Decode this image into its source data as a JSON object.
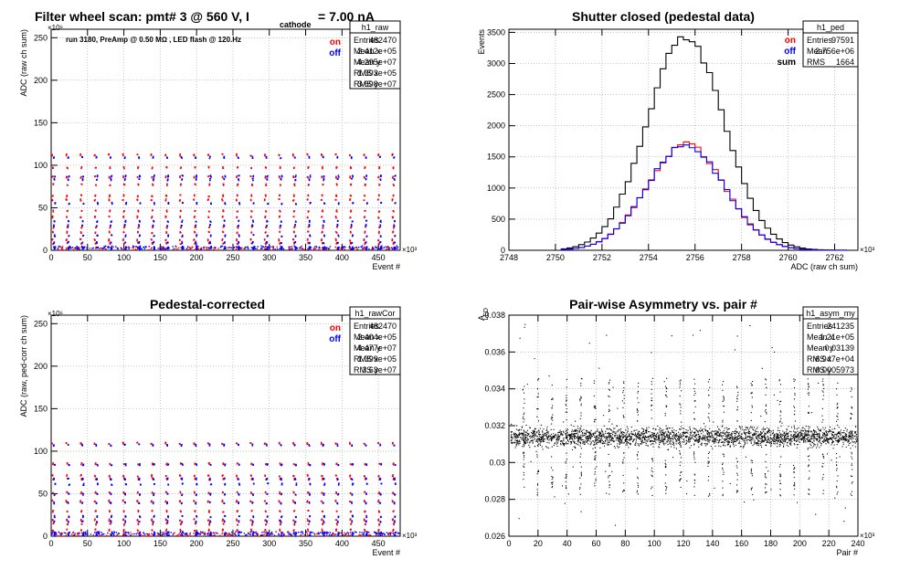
{
  "colors": {
    "on": "#ff0000",
    "off": "#0000ff",
    "sum": "#000000",
    "frame": "#000000",
    "grid": "#a0a0a0"
  },
  "chart_data": [
    {
      "id": "raw",
      "type": "scatter",
      "title": "Filter wheel scan: pmt#   3 @   560 V, I",
      "title_sub": "cathode",
      "title_end": "= 7.00 nA",
      "annotation": "run 3180, PreAmp @ 0.50 MΩ , LED flash @  120.Hz",
      "xlabel": "Event #",
      "ylabel": "ADC (raw ch sum)",
      "x_exponent": "×10³",
      "y_exponent": "×10⁶",
      "xlim": [
        0,
        480
      ],
      "ylim": [
        0,
        260
      ],
      "xticks": [
        0,
        50,
        100,
        150,
        200,
        250,
        300,
        350,
        400,
        450
      ],
      "yticks": [
        0,
        50,
        100,
        150,
        200,
        250
      ],
      "grid": true,
      "legend": [
        {
          "name": "on",
          "color": "red"
        },
        {
          "name": "off",
          "color": "blue"
        }
      ],
      "stats": {
        "name": "h1_raw",
        "rows": [
          [
            "Entries",
            "482470"
          ],
          [
            "Mean x",
            "2.412e+05"
          ],
          [
            "Mean y",
            "4.295e+07"
          ],
          [
            "RMS x",
            "1.393e+05"
          ],
          [
            "RMS y",
            "3.698e+07"
          ]
        ]
      },
      "series": [
        {
          "name": "on",
          "color": "red",
          "levels": [
            113,
            98,
            87,
            78,
            65,
            60,
            47,
            40,
            28,
            22,
            13,
            9
          ]
        },
        {
          "name": "off",
          "color": "blue",
          "levels": [
            110,
            88,
            84,
            56,
            35,
            30,
            18,
            10,
            4,
            3
          ]
        }
      ],
      "period": 19.5
    },
    {
      "id": "ped",
      "type": "line",
      "title": "Shutter closed (pedestal data)",
      "xlabel": "ADC (raw ch sum)",
      "ylabel": "Events",
      "x_exponent": "×10³",
      "xlim": [
        2748,
        2763
      ],
      "ylim": [
        0,
        3550
      ],
      "xticks": [
        2748,
        2750,
        2752,
        2754,
        2756,
        2758,
        2760,
        2762
      ],
      "yticks": [
        0,
        500,
        1000,
        1500,
        2000,
        2500,
        3000,
        3500
      ],
      "grid": true,
      "legend": [
        {
          "name": "on",
          "color": "red"
        },
        {
          "name": "off",
          "color": "blue"
        },
        {
          "name": "sum",
          "color": "black"
        }
      ],
      "stats": {
        "name": "h1_ped",
        "rows": [
          [
            "Entries",
            "97591"
          ],
          [
            "Mean",
            "2.756e+06"
          ],
          [
            "RMS",
            "1664"
          ]
        ]
      },
      "series": [
        {
          "name": "sum",
          "color": "black",
          "mean": 2755.6,
          "sigma": 1.66,
          "peak": 3400
        },
        {
          "name": "on",
          "color": "red",
          "mean": 2755.6,
          "sigma": 1.66,
          "peak": 1700
        },
        {
          "name": "off",
          "color": "blue",
          "mean": 2755.6,
          "sigma": 1.66,
          "peak": 1690
        }
      ]
    },
    {
      "id": "rawcor",
      "type": "scatter",
      "title": "Pedestal-corrected",
      "xlabel": "Event #",
      "ylabel": "ADC (raw, ped-corr ch sum)",
      "x_exponent": "×10³",
      "y_exponent": "×10⁶",
      "xlim": [
        0,
        480
      ],
      "ylim": [
        0,
        260
      ],
      "xticks": [
        0,
        50,
        100,
        150,
        200,
        250,
        300,
        350,
        400,
        450
      ],
      "yticks": [
        0,
        50,
        100,
        150,
        200,
        250
      ],
      "grid": true,
      "legend": [
        {
          "name": "on",
          "color": "red"
        },
        {
          "name": "off",
          "color": "blue"
        }
      ],
      "stats": {
        "name": "h1_rawCor",
        "rows": [
          [
            "Entries",
            "482470"
          ],
          [
            "Mean x",
            "2.404e+05"
          ],
          [
            "Mean y",
            "4.477e+07"
          ],
          [
            "RMS x",
            "1.399e+05"
          ],
          [
            "RMS y",
            "3.63e+07"
          ]
        ]
      },
      "series": [
        {
          "name": "on",
          "color": "red",
          "levels": [
            110,
            86,
            72,
            68,
            52,
            42,
            30,
            20,
            15,
            8
          ]
        },
        {
          "name": "off",
          "color": "blue",
          "levels": [
            108,
            85,
            68,
            62,
            50,
            40,
            24,
            18,
            5,
            2
          ]
        }
      ],
      "period": 19.5
    },
    {
      "id": "asym",
      "type": "scatter",
      "title": "Pair-wise Asymmetry vs. pair #",
      "xlabel": "Pair #",
      "ylabel": "A",
      "ylabel_sub": "LED",
      "x_exponent": "×10³",
      "xlim": [
        0,
        240
      ],
      "ylim": [
        0.026,
        0.038
      ],
      "xticks": [
        0,
        20,
        40,
        60,
        80,
        100,
        120,
        140,
        160,
        180,
        200,
        220,
        240
      ],
      "yticks": [
        0.026,
        0.028,
        0.03,
        0.032,
        0.034,
        0.036,
        0.038
      ],
      "grid": true,
      "stats": {
        "name": "h1_asym_my",
        "rows": [
          [
            "Entries",
            "241235"
          ],
          [
            "Mean x",
            "1.21e+05"
          ],
          [
            "Mean y",
            "0.03139"
          ],
          [
            "RMS x",
            "6.947e+04"
          ],
          [
            "RMS y",
            "0.0005973"
          ]
        ]
      },
      "series": [
        {
          "name": "asym",
          "color": "black",
          "center": 0.0314,
          "spread": 0.0005,
          "spike_period": 9.8
        }
      ]
    }
  ]
}
